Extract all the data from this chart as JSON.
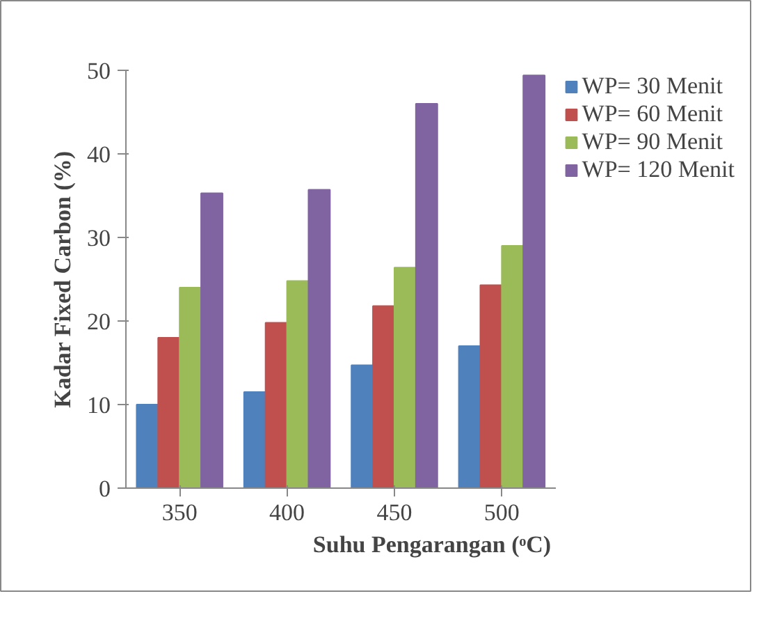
{
  "chart_data": {
    "type": "bar",
    "xlabel": "Suhu Pengarangan (ᵒC)",
    "ylabel": "Kadar Fixed Carbon (%)",
    "categories": [
      "350",
      "400",
      "450",
      "500"
    ],
    "series": [
      {
        "name": "WP= 30 Menit",
        "color": "#4f81bd",
        "values": [
          10,
          11.5,
          14.7,
          17
        ]
      },
      {
        "name": "WP= 60 Menit",
        "color": "#c0504d",
        "values": [
          18,
          19.8,
          21.8,
          24.3
        ]
      },
      {
        "name": "WP= 90 Menit",
        "color": "#9bbb59",
        "values": [
          24,
          24.8,
          26.4,
          29
        ]
      },
      {
        "name": "WP= 120 Menit",
        "color": "#8064a2",
        "values": [
          35.3,
          35.7,
          46,
          49.4
        ]
      }
    ],
    "ylim": [
      0,
      50
    ],
    "yticks": [
      0,
      10,
      20,
      30,
      40,
      50
    ],
    "grid": false,
    "legend": "top right"
  }
}
